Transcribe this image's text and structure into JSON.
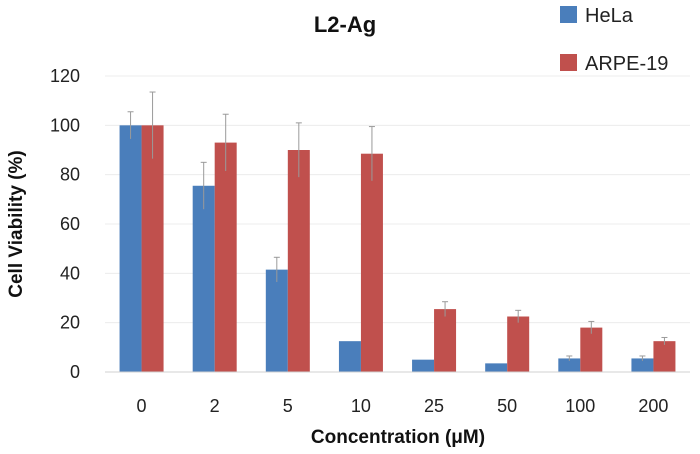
{
  "chart_data": {
    "type": "bar",
    "title": "L2-Ag",
    "xlabel": "Concentration (μM)",
    "ylabel": "Cell Viability (%)",
    "categories": [
      "0",
      "2",
      "5",
      "10",
      "25",
      "50",
      "100",
      "200"
    ],
    "ylim": [
      0,
      120
    ],
    "yticks": [
      0,
      20,
      40,
      60,
      80,
      100,
      120
    ],
    "grid": true,
    "legend_position": "top-right",
    "series": [
      {
        "name": "HeLa",
        "color": "#4a7ebb",
        "values": [
          100,
          75.5,
          41.5,
          12.5,
          5,
          3.5,
          5.5,
          5.5
        ],
        "errors": [
          5.5,
          9.5,
          5,
          0,
          0,
          0,
          1,
          1
        ]
      },
      {
        "name": "ARPE-19",
        "color": "#c0504d",
        "values": [
          100,
          93,
          90,
          88.5,
          25.5,
          22.5,
          18,
          12.5
        ],
        "errors": [
          13.5,
          11.5,
          11,
          11,
          3,
          2.5,
          2.5,
          1.5
        ]
      }
    ]
  }
}
